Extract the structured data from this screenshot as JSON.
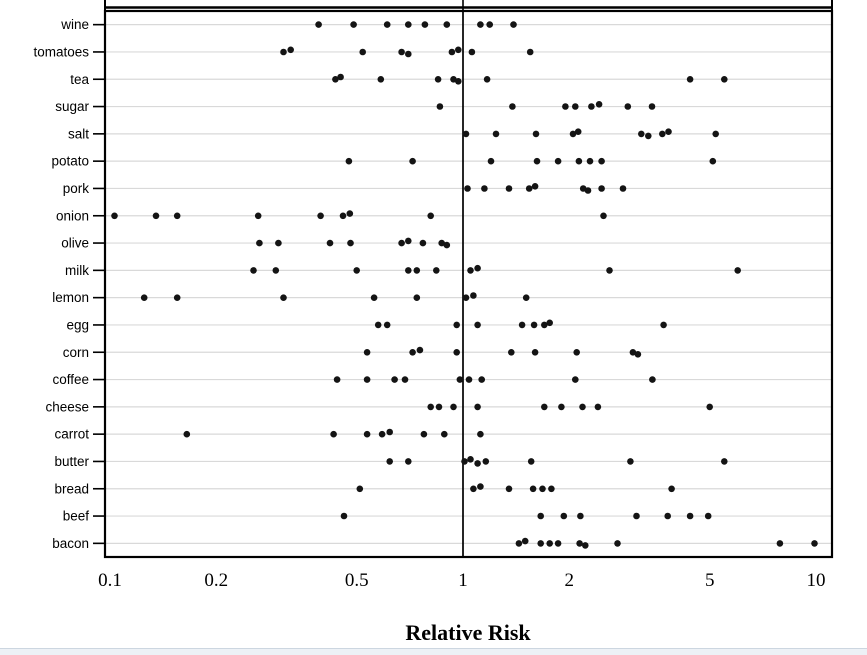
{
  "chart_data": {
    "type": "scatter",
    "title": "",
    "xlabel": "Relative Risk",
    "x_scale": "log",
    "x_ticks": [
      0.1,
      0.2,
      0.5,
      1,
      2,
      5,
      10
    ],
    "x_tick_labels": [
      "0.1",
      "0.2",
      "0.5",
      "1",
      "2",
      "5",
      "10"
    ],
    "x_range": [
      0.082,
      11.5
    ],
    "reference_line_x": 1,
    "grid": "horizontal-light",
    "legend": "none",
    "marker": "filled-black-dot",
    "rows": [
      {
        "label": "wine",
        "values": [
          0.39,
          0.49,
          0.61,
          0.7,
          0.78,
          0.9,
          1.12,
          1.19,
          1.39
        ]
      },
      {
        "label": "tomatoes",
        "values": [
          0.31,
          0.325,
          0.52,
          0.67,
          0.7,
          0.93,
          0.97,
          1.06,
          1.55
        ]
      },
      {
        "label": "tea",
        "values": [
          0.435,
          0.45,
          0.585,
          0.85,
          0.94,
          0.97,
          1.17,
          4.4,
          5.5
        ]
      },
      {
        "label": "sugar",
        "values": [
          0.86,
          1.38,
          1.95,
          2.08,
          2.31,
          2.43,
          2.93,
          3.43
        ]
      },
      {
        "label": "salt",
        "values": [
          1.02,
          1.24,
          1.61,
          2.05,
          2.12,
          3.2,
          3.35,
          3.67,
          3.82,
          5.2
        ]
      },
      {
        "label": "potato",
        "values": [
          0.475,
          0.72,
          1.2,
          1.62,
          1.86,
          2.13,
          2.29,
          2.47,
          5.1
        ]
      },
      {
        "label": "pork",
        "values": [
          1.03,
          1.15,
          1.35,
          1.54,
          1.6,
          2.19,
          2.26,
          2.47,
          2.84
        ]
      },
      {
        "label": "onion",
        "values": [
          0.103,
          0.135,
          0.155,
          0.263,
          0.395,
          0.457,
          0.478,
          0.81,
          2.5
        ]
      },
      {
        "label": "olive",
        "values": [
          0.265,
          0.3,
          0.42,
          0.48,
          0.67,
          0.7,
          0.77,
          0.87,
          0.9
        ]
      },
      {
        "label": "milk",
        "values": [
          0.255,
          0.295,
          0.5,
          0.7,
          0.74,
          0.84,
          1.05,
          1.1,
          2.6,
          6.0
        ]
      },
      {
        "label": "lemon",
        "values": [
          0.125,
          0.155,
          0.31,
          0.56,
          0.74,
          1.02,
          1.07,
          1.51
        ]
      },
      {
        "label": "egg",
        "values": [
          0.575,
          0.61,
          0.96,
          1.1,
          1.47,
          1.59,
          1.7,
          1.76,
          3.7
        ]
      },
      {
        "label": "corn",
        "values": [
          0.535,
          0.72,
          0.755,
          0.96,
          1.37,
          1.6,
          2.1,
          3.03,
          3.13
        ]
      },
      {
        "label": "coffee",
        "values": [
          0.44,
          0.535,
          0.64,
          0.685,
          0.98,
          1.04,
          1.13,
          2.08,
          3.44
        ]
      },
      {
        "label": "cheese",
        "values": [
          0.81,
          0.855,
          0.94,
          1.1,
          1.7,
          1.9,
          2.18,
          2.41,
          5.0
        ]
      },
      {
        "label": "carrot",
        "values": [
          0.165,
          0.43,
          0.535,
          0.59,
          0.62,
          0.775,
          0.885,
          1.12
        ]
      },
      {
        "label": "butter",
        "values": [
          0.62,
          0.7,
          1.01,
          1.05,
          1.1,
          1.16,
          1.56,
          2.98,
          5.5
        ]
      },
      {
        "label": "bread",
        "values": [
          0.51,
          1.07,
          1.12,
          1.35,
          1.58,
          1.68,
          1.78,
          3.9
        ]
      },
      {
        "label": "beef",
        "values": [
          0.46,
          1.66,
          1.93,
          2.15,
          3.1,
          3.8,
          4.4,
          4.95
        ]
      },
      {
        "label": "bacon",
        "values": [
          1.44,
          1.5,
          1.66,
          1.76,
          1.86,
          2.14,
          2.22,
          2.74,
          7.9,
          9.9
        ]
      }
    ]
  },
  "colors": {
    "dot": "#141414",
    "grid": "#d9d9d9",
    "frame": "#000000",
    "reference_line": "#000000",
    "background": "#ffffff",
    "footer_strip": "#edf1f6",
    "footer_border": "#ccd6e0"
  }
}
